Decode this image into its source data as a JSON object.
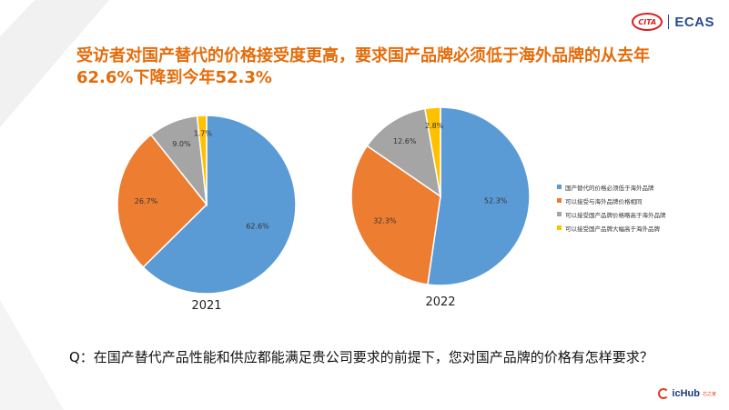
{
  "header": {
    "logo_left": "CITA",
    "logo_right": "ECAS"
  },
  "title": "受访者对国产替代的价格接受度更高，要求国产品牌必须低于海外品牌的从去年62.6%下降到今年52.3%",
  "question": "Q：在国产替代产品性能和供应都能满足贵公司要求的前提下，您对国产品牌的价格有怎样要求？",
  "footer": {
    "brand": "icHub",
    "brand_sub": "芯之家"
  },
  "colors": {
    "blue": "#5b9bd5",
    "orange": "#ed7d31",
    "gray": "#a5a5a5",
    "yellow": "#ffc000",
    "title": "#e46c0a"
  },
  "chart_data": [
    {
      "type": "pie",
      "title": "2021",
      "categories": [
        "国产替代的价格必须低于海外品牌",
        "可以接受与海外品牌价格相同",
        "可以接受国产品牌价格略高于海外品牌",
        "可以接受国产品牌大幅高于海外品牌"
      ],
      "values": [
        62.6,
        26.7,
        9.0,
        1.7
      ],
      "labels": [
        "62.6%",
        "26.7%",
        "9.0%",
        "1.7%"
      ]
    },
    {
      "type": "pie",
      "title": "2022",
      "categories": [
        "国产替代的价格必须低于海外品牌",
        "可以接受与海外品牌价格相同",
        "可以接受国产品牌价格略高于海外品牌",
        "可以接受国产品牌大幅高于海外品牌"
      ],
      "values": [
        52.3,
        32.3,
        12.6,
        2.8
      ],
      "labels": [
        "52.3%",
        "32.3%",
        "12.6%",
        "2.8%"
      ]
    }
  ],
  "legend": {
    "items": [
      {
        "label": "国产替代的价格必须低于海外品牌",
        "color": "#5b9bd5"
      },
      {
        "label": "可以接受与海外品牌价格相同",
        "color": "#ed7d31"
      },
      {
        "label": "可以接受国产品牌价格略高于海外品牌",
        "color": "#a5a5a5"
      },
      {
        "label": "可以接受国产品牌大幅高于海外品牌",
        "color": "#ffc000"
      }
    ]
  }
}
